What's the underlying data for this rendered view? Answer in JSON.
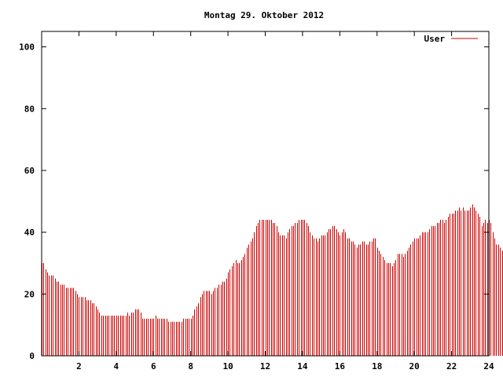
{
  "chart_data": {
    "type": "bar",
    "title": "Montag 29. Oktober 2012",
    "xlabel": "",
    "ylabel": "",
    "xlim": [
      0,
      24
    ],
    "ylim": [
      0,
      105
    ],
    "xticks": [
      2,
      4,
      6,
      8,
      10,
      12,
      14,
      16,
      18,
      20,
      22,
      24
    ],
    "yticks": [
      0,
      20,
      40,
      60,
      80,
      100
    ],
    "xtick_labels": [
      "2",
      "4",
      "6",
      "8",
      "10",
      "12",
      "14",
      "16",
      "18",
      "20",
      "22",
      "24"
    ],
    "ytick_labels": [
      "0",
      "20",
      "40",
      "60",
      "80",
      "100"
    ],
    "grid": false,
    "legend_position": "top-right",
    "series": [
      {
        "name": "User",
        "color": "#cc0000",
        "x_start": 0,
        "x_step": 0.1,
        "values": [
          30,
          30,
          28,
          27,
          26,
          26,
          26,
          25,
          24,
          24,
          23,
          23,
          23,
          22,
          22,
          22,
          22,
          22,
          21,
          20,
          19,
          19,
          19,
          19,
          18,
          18,
          18,
          17,
          17,
          16,
          15,
          14,
          13,
          13,
          13,
          13,
          13,
          13,
          13,
          13,
          13,
          13,
          13,
          13,
          13,
          13,
          14,
          13,
          14,
          14,
          15,
          15,
          15,
          14,
          12,
          12,
          12,
          12,
          12,
          12,
          12,
          13,
          12,
          12,
          12,
          12,
          12,
          12,
          11,
          11,
          11,
          11,
          11,
          11,
          11,
          11,
          12,
          12,
          12,
          12,
          12,
          13,
          15,
          16,
          17,
          19,
          20,
          21,
          21,
          21,
          21,
          20,
          21,
          22,
          22,
          23,
          23,
          24,
          24,
          25,
          27,
          28,
          29,
          30,
          31,
          30,
          30,
          31,
          32,
          33,
          35,
          36,
          37,
          38,
          40,
          42,
          43,
          44,
          44,
          44,
          44,
          44,
          44,
          44,
          43,
          43,
          42,
          40,
          39,
          39,
          39,
          38,
          40,
          41,
          42,
          42,
          43,
          43,
          44,
          44,
          44,
          44,
          43,
          42,
          40,
          39,
          38,
          38,
          37,
          38,
          39,
          39,
          39,
          40,
          41,
          41,
          42,
          42,
          41,
          40,
          39,
          40,
          41,
          40,
          38,
          38,
          37,
          37,
          36,
          35,
          36,
          36,
          37,
          37,
          36,
          36,
          37,
          37,
          38,
          38,
          35,
          34,
          33,
          32,
          31,
          30,
          30,
          30,
          29,
          30,
          31,
          33,
          33,
          33,
          32,
          33,
          34,
          35,
          36,
          37,
          38,
          38,
          38,
          39,
          40,
          40,
          40,
          40,
          41,
          42,
          42,
          42,
          43,
          43,
          44,
          44,
          43,
          44,
          45,
          46,
          46,
          46,
          47,
          47,
          48,
          47,
          48,
          47,
          47,
          47,
          48,
          49,
          48,
          47,
          46,
          45,
          42,
          43,
          44,
          43,
          44,
          43,
          40,
          38,
          36,
          36,
          35,
          34,
          33,
          32,
          33,
          33,
          33
        ]
      }
    ]
  }
}
